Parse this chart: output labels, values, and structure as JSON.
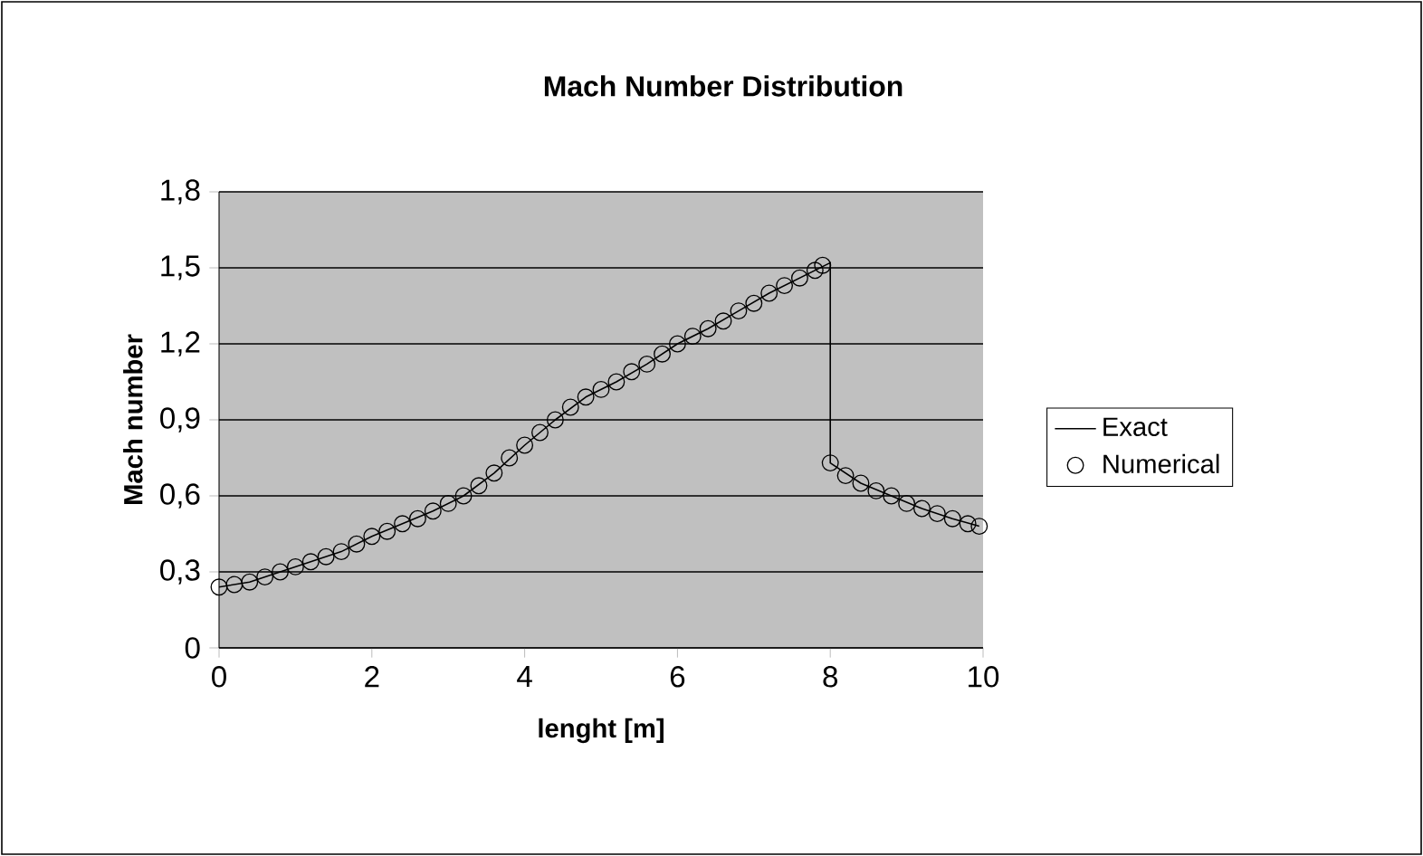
{
  "chart_data": {
    "type": "line",
    "title": "Mach Number Distribution",
    "xlabel": "lenght [m]",
    "ylabel": "Mach number",
    "xlim": [
      0,
      10
    ],
    "xticks": [
      0,
      2,
      4,
      6,
      8,
      10
    ],
    "ylim": [
      0,
      1.8
    ],
    "yticks": [
      0,
      {
        "value": 0.3,
        "label": "0,3"
      },
      {
        "value": 0.6,
        "label": "0,6"
      },
      {
        "value": 0.9,
        "label": "0,9"
      },
      {
        "value": 1.2,
        "label": "1,2"
      },
      {
        "value": 1.5,
        "label": "1,5"
      },
      {
        "value": 1.8,
        "label": "1,8"
      }
    ],
    "grid": "y",
    "legend": "right",
    "series": [
      {
        "name": "Exact",
        "type": "line",
        "color": "#000000",
        "marker": "none",
        "line_style": "solid",
        "x": [
          0,
          0.4,
          0.8,
          1.2,
          1.6,
          2.0,
          2.4,
          2.8,
          3.2,
          3.6,
          4.0,
          4.4,
          4.8,
          5.2,
          5.6,
          6.0,
          6.4,
          6.8,
          7.2,
          7.6,
          8.0,
          8.0,
          8.4,
          8.8,
          9.2,
          9.6,
          9.95
        ],
        "values": [
          0.24,
          0.26,
          0.3,
          0.34,
          0.38,
          0.44,
          0.49,
          0.54,
          0.6,
          0.69,
          0.8,
          0.9,
          0.99,
          1.05,
          1.12,
          1.2,
          1.26,
          1.33,
          1.4,
          1.46,
          1.52,
          0.73,
          0.65,
          0.6,
          0.55,
          0.51,
          0.48
        ]
      },
      {
        "name": "Numerical",
        "type": "scatter",
        "color": "#000000",
        "marker": "circle",
        "x": [
          0,
          0.2,
          0.4,
          0.6,
          0.8,
          1.0,
          1.2,
          1.4,
          1.6,
          1.8,
          2.0,
          2.2,
          2.4,
          2.6,
          2.8,
          3.0,
          3.2,
          3.4,
          3.6,
          3.8,
          4.0,
          4.2,
          4.4,
          4.6,
          4.8,
          5.0,
          5.2,
          5.4,
          5.6,
          5.8,
          6.0,
          6.2,
          6.4,
          6.6,
          6.8,
          7.0,
          7.2,
          7.4,
          7.6,
          7.8,
          7.9,
          8.0,
          8.2,
          8.4,
          8.6,
          8.8,
          9.0,
          9.2,
          9.4,
          9.6,
          9.8,
          9.95
        ],
        "values": [
          0.24,
          0.25,
          0.26,
          0.28,
          0.3,
          0.32,
          0.34,
          0.36,
          0.38,
          0.41,
          0.44,
          0.46,
          0.49,
          0.51,
          0.54,
          0.57,
          0.6,
          0.64,
          0.69,
          0.75,
          0.8,
          0.85,
          0.9,
          0.95,
          0.99,
          1.02,
          1.05,
          1.09,
          1.12,
          1.16,
          1.2,
          1.23,
          1.26,
          1.29,
          1.33,
          1.36,
          1.4,
          1.43,
          1.46,
          1.49,
          1.51,
          0.73,
          0.68,
          0.65,
          0.62,
          0.6,
          0.57,
          0.55,
          0.53,
          0.51,
          0.49,
          0.48
        ]
      }
    ]
  }
}
